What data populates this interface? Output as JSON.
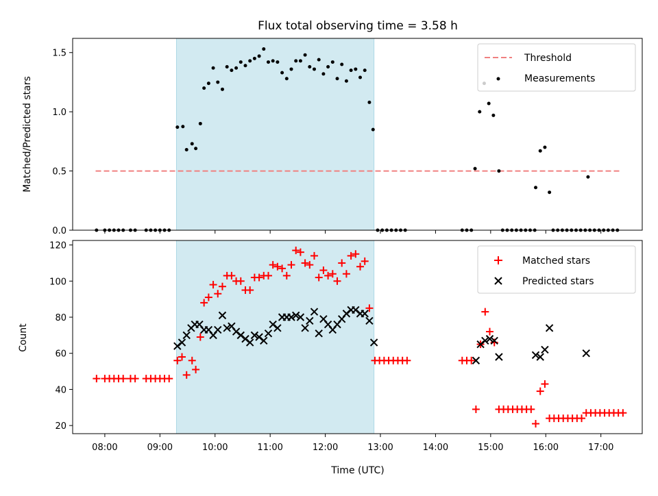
{
  "chart_data": [
    {
      "type": "scatter",
      "title": "Flux total observing time = 3.58 h",
      "xlabel": "",
      "ylabel": "Matched/Predicted stars",
      "xlim": [
        "07:25",
        "17:45"
      ],
      "ylim": [
        0,
        1.62
      ],
      "yticks": [
        "0.0",
        "0.5",
        "1.0",
        "1.5"
      ],
      "threshold": 0.5,
      "threshold_range": [
        "07:50",
        "17:20"
      ],
      "shaded_interval": [
        "09:18",
        "12:53"
      ],
      "legend": {
        "position": "top-right",
        "threshold_label": "Threshold",
        "measurements_label": "Measurements"
      },
      "colors": {
        "threshold": "#f08080",
        "points": "#000000",
        "shade": "#add8e6"
      },
      "series": [
        {
          "name": "Measurements",
          "points": [
            [
              "07:51",
              0
            ],
            [
              "08:00",
              0
            ],
            [
              "08:05",
              0
            ],
            [
              "08:10",
              0
            ],
            [
              "08:15",
              0
            ],
            [
              "08:20",
              0
            ],
            [
              "08:28",
              0
            ],
            [
              "08:33",
              0
            ],
            [
              "08:45",
              0
            ],
            [
              "08:50",
              0
            ],
            [
              "08:55",
              0
            ],
            [
              "09:00",
              0
            ],
            [
              "09:05",
              0
            ],
            [
              "09:10",
              0
            ],
            [
              "09:19",
              0.87
            ],
            [
              "09:25",
              0.875
            ],
            [
              "09:29",
              0.68
            ],
            [
              "09:35",
              0.73
            ],
            [
              "09:39",
              0.69
            ],
            [
              "09:44",
              0.9
            ],
            [
              "09:48",
              1.2
            ],
            [
              "09:53",
              1.24
            ],
            [
              "09:58",
              1.37
            ],
            [
              "10:03",
              1.25
            ],
            [
              "10:08",
              1.19
            ],
            [
              "10:13",
              1.38
            ],
            [
              "10:18",
              1.35
            ],
            [
              "10:23",
              1.37
            ],
            [
              "10:28",
              1.42
            ],
            [
              "10:33",
              1.39
            ],
            [
              "10:38",
              1.43
            ],
            [
              "10:43",
              1.45
            ],
            [
              "10:48",
              1.47
            ],
            [
              "10:53",
              1.53
            ],
            [
              "10:58",
              1.42
            ],
            [
              "11:03",
              1.43
            ],
            [
              "11:08",
              1.42
            ],
            [
              "11:13",
              1.33
            ],
            [
              "11:18",
              1.28
            ],
            [
              "11:23",
              1.36
            ],
            [
              "11:28",
              1.43
            ],
            [
              "11:33",
              1.43
            ],
            [
              "11:38",
              1.48
            ],
            [
              "11:43",
              1.38
            ],
            [
              "11:48",
              1.36
            ],
            [
              "11:53",
              1.44
            ],
            [
              "11:58",
              1.32
            ],
            [
              "12:03",
              1.38
            ],
            [
              "12:08",
              1.42
            ],
            [
              "12:13",
              1.28
            ],
            [
              "12:18",
              1.4
            ],
            [
              "12:23",
              1.26
            ],
            [
              "12:28",
              1.35
            ],
            [
              "12:33",
              1.36
            ],
            [
              "12:38",
              1.29
            ],
            [
              "12:43",
              1.35
            ],
            [
              "12:48",
              1.08
            ],
            [
              "12:52",
              0.85
            ],
            [
              "12:57",
              0
            ],
            [
              "13:02",
              0
            ],
            [
              "13:07",
              0
            ],
            [
              "13:12",
              0
            ],
            [
              "13:17",
              0
            ],
            [
              "13:22",
              0
            ],
            [
              "13:27",
              0
            ],
            [
              "14:29",
              0
            ],
            [
              "14:34",
              0
            ],
            [
              "14:39",
              0
            ],
            [
              "14:43",
              0.52
            ],
            [
              "14:48",
              1.0
            ],
            [
              "14:53",
              1.24
            ],
            [
              "14:58",
              1.07
            ],
            [
              "15:03",
              0.97
            ],
            [
              "15:09",
              0.5
            ],
            [
              "15:13",
              0
            ],
            [
              "15:18",
              0
            ],
            [
              "15:23",
              0
            ],
            [
              "15:28",
              0
            ],
            [
              "15:33",
              0
            ],
            [
              "15:38",
              0
            ],
            [
              "15:43",
              0
            ],
            [
              "15:48",
              0
            ],
            [
              "15:49",
              0.36
            ],
            [
              "15:54",
              0.67
            ],
            [
              "15:59",
              0.7
            ],
            [
              "16:04",
              0.32
            ],
            [
              "16:08",
              0
            ],
            [
              "16:13",
              0
            ],
            [
              "16:18",
              0
            ],
            [
              "16:23",
              0
            ],
            [
              "16:28",
              0
            ],
            [
              "16:33",
              0
            ],
            [
              "16:38",
              0
            ],
            [
              "16:43",
              0
            ],
            [
              "16:46",
              0.45
            ],
            [
              "16:48",
              0
            ],
            [
              "16:53",
              0
            ],
            [
              "16:58",
              0
            ],
            [
              "17:03",
              0
            ],
            [
              "17:08",
              0
            ],
            [
              "17:13",
              0
            ],
            [
              "17:18",
              0
            ]
          ]
        }
      ]
    },
    {
      "type": "scatter",
      "title": "",
      "xlabel": "Time (UTC)",
      "ylabel": "Count",
      "xlim": [
        "07:25",
        "17:45"
      ],
      "ylim": [
        15.5,
        122.5
      ],
      "yticks": [
        "20",
        "40",
        "60",
        "80",
        "100",
        "120"
      ],
      "xticks": [
        "08:00",
        "09:00",
        "10:00",
        "11:00",
        "12:00",
        "13:00",
        "14:00",
        "15:00",
        "16:00",
        "17:00"
      ],
      "shaded_interval": [
        "09:18",
        "12:53"
      ],
      "legend": {
        "position": "top-right"
      },
      "colors": {
        "matched": "#ff0000",
        "predicted": "#000000",
        "shade": "#add8e6"
      },
      "series": [
        {
          "name": "Matched stars",
          "marker": "+",
          "points": [
            [
              "07:51",
              46
            ],
            [
              "08:00",
              46
            ],
            [
              "08:05",
              46
            ],
            [
              "08:10",
              46
            ],
            [
              "08:15",
              46
            ],
            [
              "08:20",
              46
            ],
            [
              "08:28",
              46
            ],
            [
              "08:33",
              46
            ],
            [
              "08:45",
              46
            ],
            [
              "08:50",
              46
            ],
            [
              "08:55",
              46
            ],
            [
              "09:00",
              46
            ],
            [
              "09:05",
              46
            ],
            [
              "09:10",
              46
            ],
            [
              "09:19",
              56
            ],
            [
              "09:24",
              58
            ],
            [
              "09:29",
              48
            ],
            [
              "09:35",
              56
            ],
            [
              "09:39",
              51
            ],
            [
              "09:44",
              69
            ],
            [
              "09:48",
              88
            ],
            [
              "09:53",
              91
            ],
            [
              "09:58",
              98
            ],
            [
              "10:03",
              93
            ],
            [
              "10:08",
              97
            ],
            [
              "10:13",
              103
            ],
            [
              "10:18",
              103
            ],
            [
              "10:23",
              100
            ],
            [
              "10:28",
              100
            ],
            [
              "10:33",
              95
            ],
            [
              "10:38",
              95
            ],
            [
              "10:43",
              102
            ],
            [
              "10:48",
              102
            ],
            [
              "10:53",
              103
            ],
            [
              "10:58",
              103
            ],
            [
              "11:03",
              109
            ],
            [
              "11:08",
              108
            ],
            [
              "11:13",
              107
            ],
            [
              "11:18",
              103
            ],
            [
              "11:23",
              109
            ],
            [
              "11:28",
              117
            ],
            [
              "11:33",
              116
            ],
            [
              "11:38",
              110
            ],
            [
              "11:43",
              109
            ],
            [
              "11:48",
              114
            ],
            [
              "11:53",
              102
            ],
            [
              "11:58",
              106
            ],
            [
              "12:03",
              103
            ],
            [
              "12:08",
              104
            ],
            [
              "12:13",
              100
            ],
            [
              "12:18",
              110
            ],
            [
              "12:23",
              104
            ],
            [
              "12:28",
              114
            ],
            [
              "12:33",
              115
            ],
            [
              "12:38",
              108
            ],
            [
              "12:43",
              111
            ],
            [
              "12:48",
              85
            ],
            [
              "12:54",
              56
            ],
            [
              "12:59",
              56
            ],
            [
              "13:04",
              56
            ],
            [
              "13:09",
              56
            ],
            [
              "13:14",
              56
            ],
            [
              "13:19",
              56
            ],
            [
              "13:24",
              56
            ],
            [
              "13:29",
              56
            ],
            [
              "14:29",
              56
            ],
            [
              "14:34",
              56
            ],
            [
              "14:39",
              56
            ],
            [
              "14:44",
              29
            ],
            [
              "14:49",
              65
            ],
            [
              "14:54",
              83
            ],
            [
              "14:59",
              72
            ],
            [
              "15:04",
              66
            ],
            [
              "15:09",
              29
            ],
            [
              "15:14",
              29
            ],
            [
              "15:19",
              29
            ],
            [
              "15:24",
              29
            ],
            [
              "15:29",
              29
            ],
            [
              "15:34",
              29
            ],
            [
              "15:39",
              29
            ],
            [
              "15:44",
              29
            ],
            [
              "15:49",
              21
            ],
            [
              "15:54",
              39
            ],
            [
              "15:59",
              43
            ],
            [
              "16:04",
              24
            ],
            [
              "16:09",
              24
            ],
            [
              "16:14",
              24
            ],
            [
              "16:19",
              24
            ],
            [
              "16:24",
              24
            ],
            [
              "16:29",
              24
            ],
            [
              "16:34",
              24
            ],
            [
              "16:39",
              24
            ],
            [
              "16:44",
              27
            ],
            [
              "16:49",
              27
            ],
            [
              "16:54",
              27
            ],
            [
              "16:59",
              27
            ],
            [
              "17:04",
              27
            ],
            [
              "17:09",
              27
            ],
            [
              "17:14",
              27
            ],
            [
              "17:19",
              27
            ],
            [
              "17:24",
              27
            ]
          ]
        },
        {
          "name": "Predicted stars",
          "marker": "x",
          "points": [
            [
              "09:19",
              64
            ],
            [
              "09:24",
              66
            ],
            [
              "09:29",
              70
            ],
            [
              "09:34",
              74
            ],
            [
              "09:38",
              76
            ],
            [
              "09:43",
              76
            ],
            [
              "09:48",
              73
            ],
            [
              "09:53",
              73
            ],
            [
              "09:58",
              70
            ],
            [
              "10:03",
              73
            ],
            [
              "10:08",
              81
            ],
            [
              "10:13",
              74
            ],
            [
              "10:18",
              75
            ],
            [
              "10:23",
              72
            ],
            [
              "10:28",
              70
            ],
            [
              "10:33",
              68
            ],
            [
              "10:38",
              66
            ],
            [
              "10:43",
              70
            ],
            [
              "10:48",
              69
            ],
            [
              "10:53",
              67
            ],
            [
              "10:58",
              71
            ],
            [
              "11:03",
              76
            ],
            [
              "11:08",
              74
            ],
            [
              "11:13",
              80
            ],
            [
              "11:18",
              80
            ],
            [
              "11:23",
              80
            ],
            [
              "11:28",
              81
            ],
            [
              "11:33",
              80
            ],
            [
              "11:38",
              74
            ],
            [
              "11:43",
              78
            ],
            [
              "11:48",
              83
            ],
            [
              "11:53",
              71
            ],
            [
              "11:58",
              79
            ],
            [
              "12:03",
              76
            ],
            [
              "12:08",
              73
            ],
            [
              "12:13",
              76
            ],
            [
              "12:18",
              79
            ],
            [
              "12:23",
              82
            ],
            [
              "12:28",
              84
            ],
            [
              "12:33",
              84
            ],
            [
              "12:38",
              82
            ],
            [
              "12:43",
              82
            ],
            [
              "12:48",
              78
            ],
            [
              "12:53",
              66
            ],
            [
              "14:44",
              56
            ],
            [
              "14:49",
              65
            ],
            [
              "14:54",
              67
            ],
            [
              "14:59",
              68
            ],
            [
              "15:04",
              67
            ],
            [
              "15:09",
              58
            ],
            [
              "15:49",
              59
            ],
            [
              "15:54",
              58
            ],
            [
              "15:59",
              62
            ],
            [
              "16:04",
              74
            ],
            [
              "16:44",
              60
            ]
          ]
        }
      ]
    }
  ]
}
